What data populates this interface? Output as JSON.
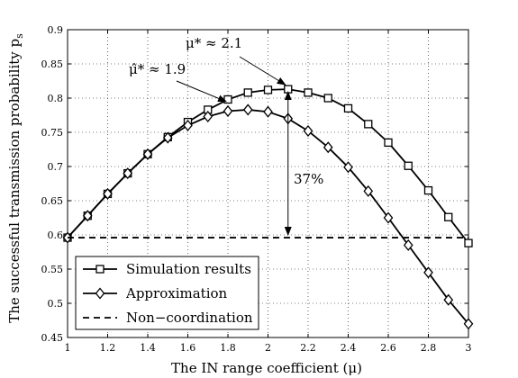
{
  "chart_data": {
    "type": "line",
    "xlabel": "The IN range coefficient (μ)",
    "ylabel": "The successful transmission probability  p",
    "ylabel_subscript": "s",
    "xlim": [
      1,
      3
    ],
    "ylim": [
      0.45,
      0.9
    ],
    "xticks": [
      1,
      1.2,
      1.4,
      1.6,
      1.8,
      2,
      2.2,
      2.4,
      2.6,
      2.8,
      3
    ],
    "yticks": [
      0.45,
      0.5,
      0.55,
      0.6,
      0.65,
      0.7,
      0.75,
      0.8,
      0.85,
      0.9
    ],
    "grid": "dotted",
    "legend_position": "bottom-left",
    "series": [
      {
        "name": "Simulation results",
        "marker": "square",
        "line_style": "solid",
        "color": "#000000",
        "x": [
          1,
          1.1,
          1.2,
          1.3,
          1.4,
          1.5,
          1.6,
          1.7,
          1.8,
          1.9,
          2.0,
          2.1,
          2.2,
          2.3,
          2.4,
          2.5,
          2.6,
          2.7,
          2.8,
          2.9,
          3.0
        ],
        "values": [
          0.596,
          0.628,
          0.66,
          0.69,
          0.718,
          0.743,
          0.765,
          0.783,
          0.798,
          0.808,
          0.812,
          0.813,
          0.808,
          0.8,
          0.785,
          0.762,
          0.735,
          0.701,
          0.665,
          0.626,
          0.588
        ]
      },
      {
        "name": "Approximation",
        "marker": "diamond",
        "line_style": "solid",
        "color": "#000000",
        "x": [
          1,
          1.1,
          1.2,
          1.3,
          1.4,
          1.5,
          1.6,
          1.7,
          1.8,
          1.9,
          2.0,
          2.1,
          2.2,
          2.3,
          2.4,
          2.5,
          2.6,
          2.7,
          2.8,
          2.9,
          3.0
        ],
        "values": [
          0.596,
          0.628,
          0.66,
          0.69,
          0.718,
          0.742,
          0.76,
          0.773,
          0.781,
          0.783,
          0.78,
          0.77,
          0.752,
          0.728,
          0.699,
          0.664,
          0.625,
          0.585,
          0.545,
          0.505,
          0.47
        ]
      },
      {
        "name": "Non−coordination",
        "marker": "none",
        "line_style": "dashed",
        "color": "#000000",
        "x": [
          1,
          3
        ],
        "values": [
          0.596,
          0.596
        ]
      }
    ],
    "annotations": [
      {
        "text": "μ* ≈ 2.1",
        "target": [
          2.1,
          0.813
        ]
      },
      {
        "text": "μ̂* ≈ 1.9",
        "target": [
          1.9,
          0.783
        ]
      },
      {
        "text": "37%",
        "from": 0.596,
        "to": 0.813,
        "at_x": 2.1
      }
    ]
  }
}
